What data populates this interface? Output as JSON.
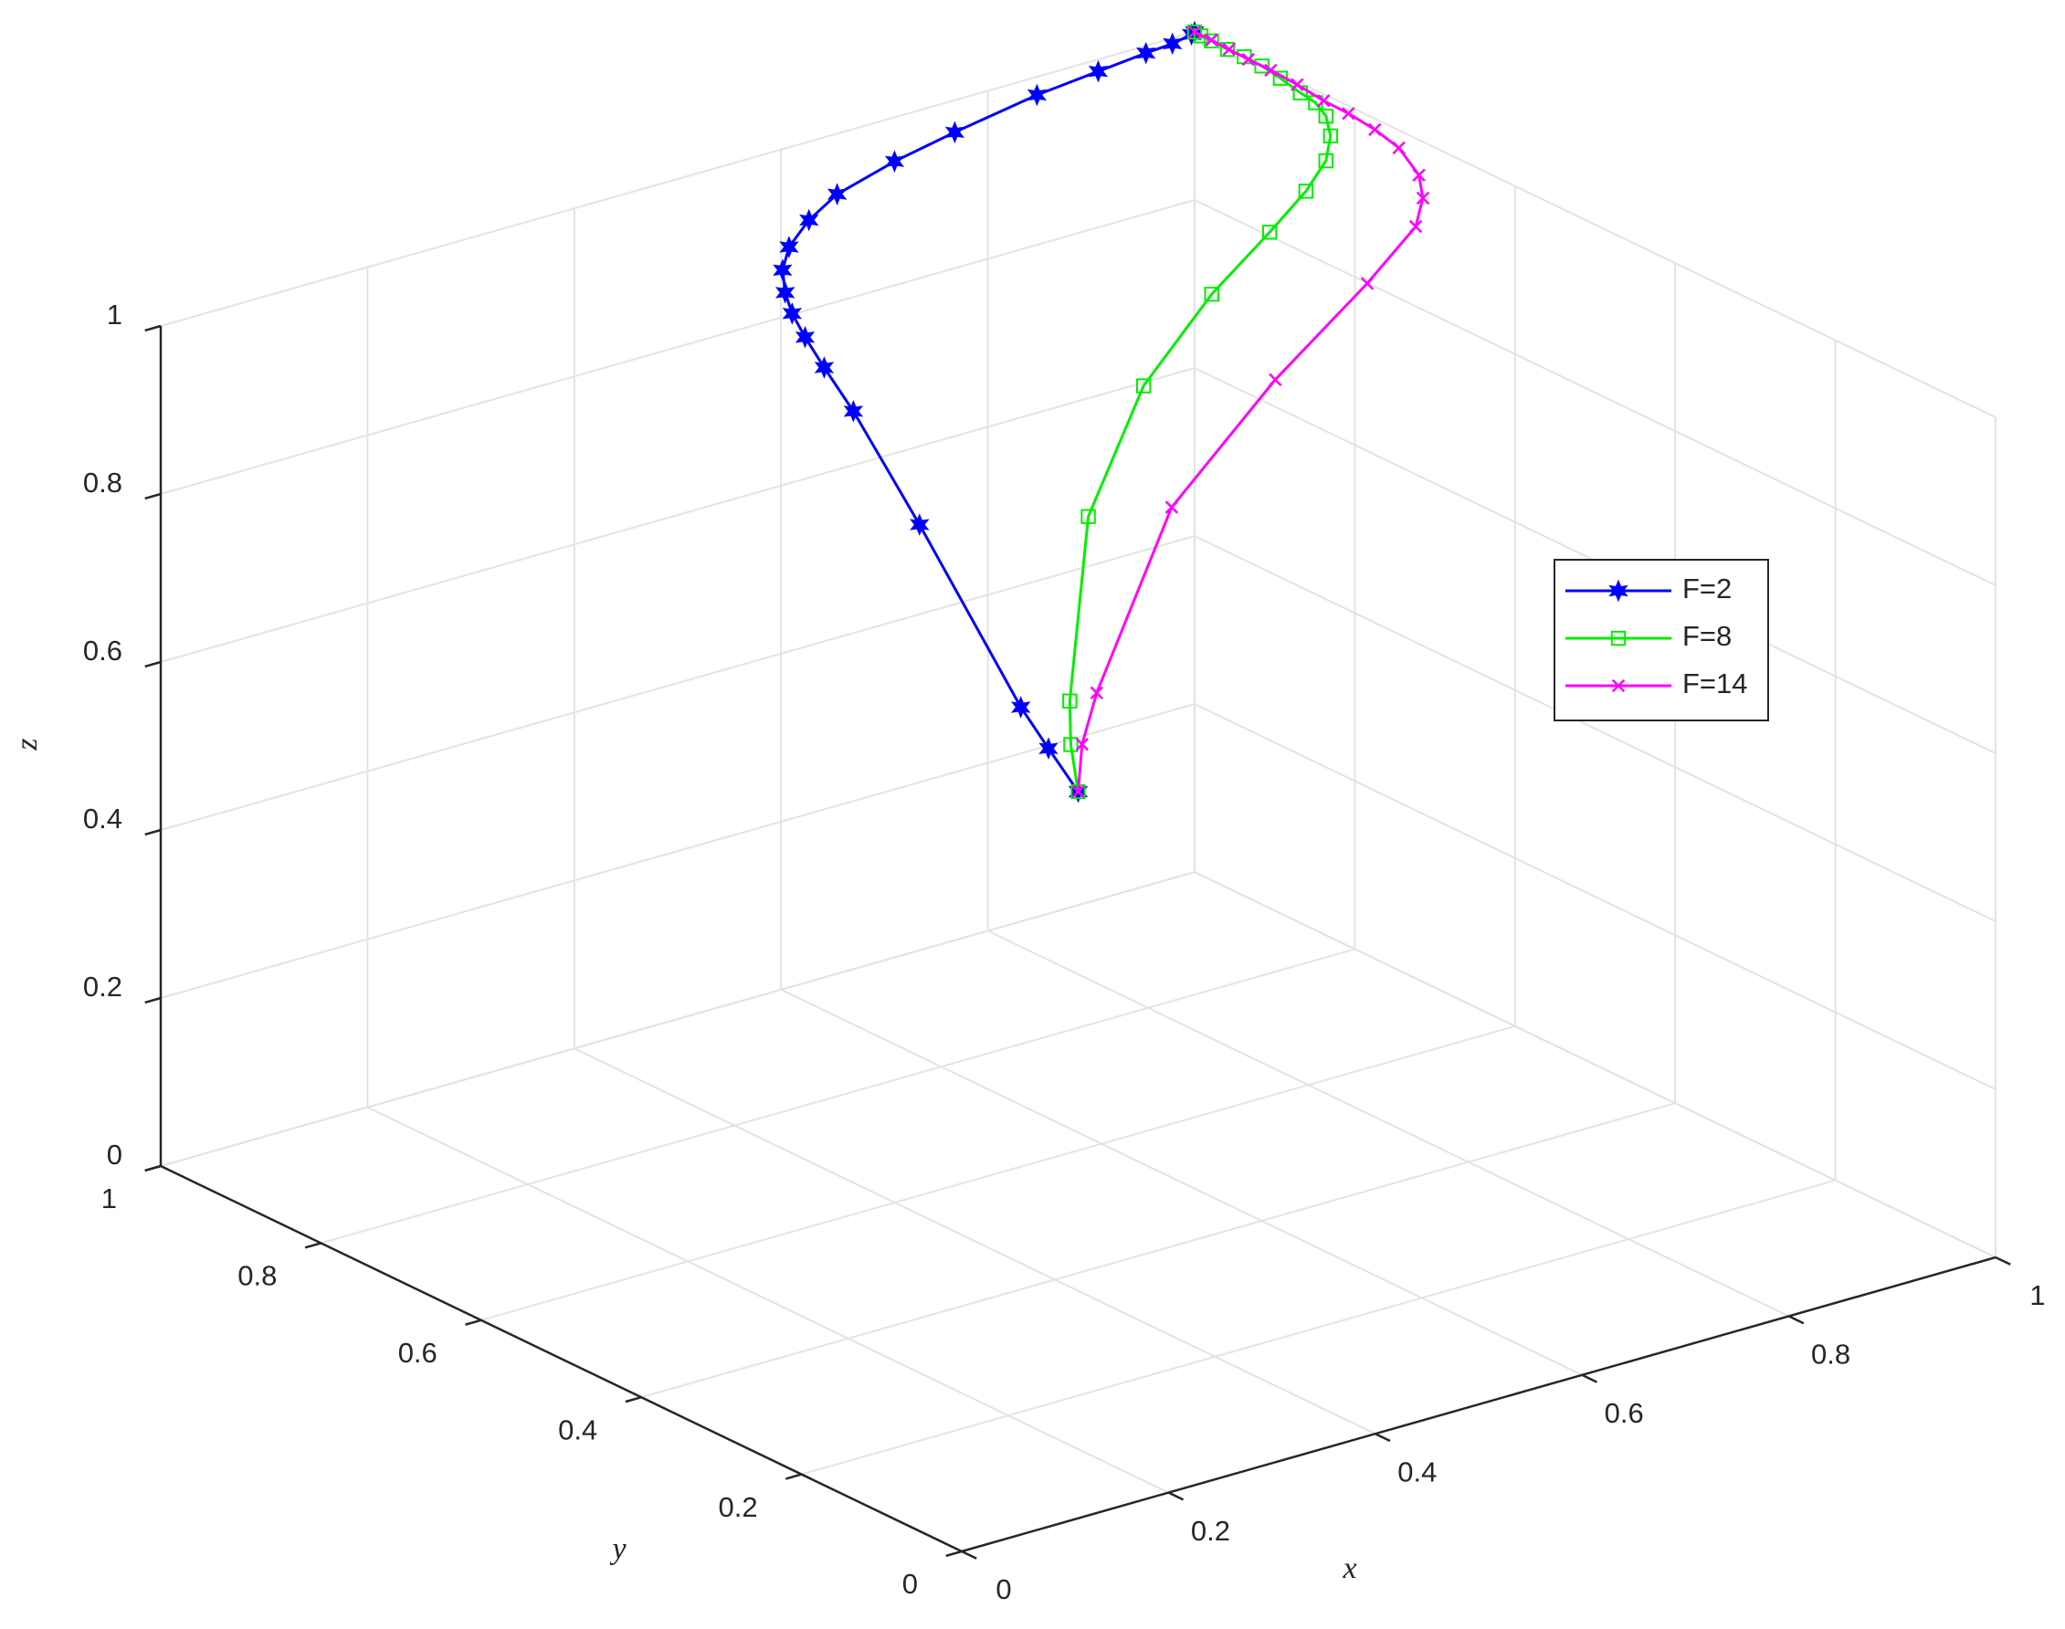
{
  "chart_data": {
    "type": "line3d",
    "xlabel": "x",
    "ylabel": "y",
    "zlabel": "z",
    "xlim": [
      0,
      1
    ],
    "ylim": [
      0,
      1
    ],
    "zlim": [
      0,
      1
    ],
    "xticks": [
      0,
      0.2,
      0.4,
      0.6,
      0.8,
      1
    ],
    "yticks": [
      0,
      0.2,
      0.4,
      0.6,
      0.8,
      1
    ],
    "zticks": [
      0,
      0.2,
      0.4,
      0.6,
      0.8,
      1
    ],
    "grid": true,
    "legend_location": "east",
    "series": [
      {
        "name": "F=2",
        "color": "#0000ff",
        "marker": "star",
        "x": [
          0.5,
          0.51,
          0.522,
          0.517,
          0.515,
          0.51,
          0.507,
          0.51,
          0.511,
          0.524,
          0.538,
          0.565,
          0.6,
          0.671,
          0.737,
          0.832,
          0.899,
          0.949,
          0.977,
          0.997,
          1
        ],
        "y": [
          0.5,
          0.55,
          0.6,
          0.72,
          0.8,
          0.83,
          0.85,
          0.87,
          0.88,
          0.9,
          0.91,
          0.92,
          0.93,
          0.95,
          0.96,
          0.98,
          0.99,
          0.995,
          0.998,
          1,
          1
        ],
        "z": [
          0.5,
          0.525,
          0.547,
          0.711,
          0.81,
          0.85,
          0.878,
          0.896,
          0.916,
          0.929,
          0.947,
          0.965,
          0.979,
          0.984,
          0.991,
          0.993,
          0.993,
          0.995,
          0.995,
          0.998,
          1
        ]
      },
      {
        "name": "F=8",
        "color": "#00ee00",
        "marker": "square",
        "x": [
          0.5,
          0.52,
          0.55,
          0.65,
          0.75,
          0.85,
          0.92,
          0.962,
          0.986,
          0.999,
          1,
          1,
          1,
          1,
          1,
          1,
          1,
          1,
          1,
          1
        ],
        "y": [
          0.5,
          0.535,
          0.575,
          0.681,
          0.741,
          0.785,
          0.803,
          0.812,
          0.818,
          0.829,
          0.836,
          0.849,
          0.868,
          0.893,
          0.916,
          0.938,
          0.959,
          0.979,
          0.992,
          1
        ],
        "z": [
          0.5,
          0.533,
          0.556,
          0.692,
          0.785,
          0.839,
          0.88,
          0.91,
          0.935,
          0.955,
          0.975,
          0.985,
          0.988,
          0.994,
          0.998,
          0.999,
          0.998,
          0.999,
          0.999,
          1
        ]
      },
      {
        "name": "F=14",
        "color": "#ff00ff",
        "marker": "x",
        "x": [
          0.5,
          0.541,
          0.583,
          0.757,
          0.875,
          0.957,
          1,
          1,
          1,
          1,
          1,
          1,
          1,
          1,
          1,
          1,
          1,
          1,
          1
        ],
        "y": [
          0.5,
          0.548,
          0.584,
          0.715,
          0.738,
          0.729,
          0.724,
          0.715,
          0.72,
          0.745,
          0.775,
          0.808,
          0.839,
          0.872,
          0.905,
          0.933,
          0.957,
          0.979,
          1
        ],
        "z": [
          0.5,
          0.52,
          0.55,
          0.65,
          0.75,
          0.84,
          0.895,
          0.933,
          0.958,
          0.979,
          0.987,
          0.991,
          0.992,
          0.996,
          0.998,
          0.998,
          0.999,
          1,
          1
        ]
      }
    ]
  }
}
